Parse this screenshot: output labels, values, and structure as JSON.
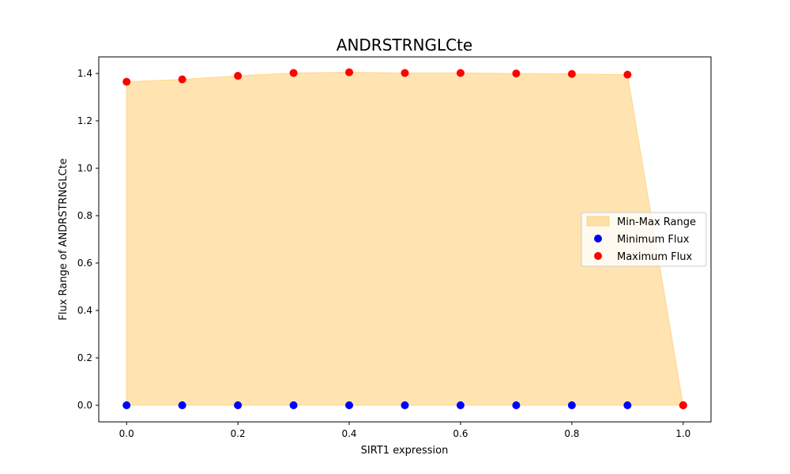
{
  "chart_data": {
    "type": "area",
    "title": "ANDRSTRNGLCte",
    "xlabel": "SIRT1 expression",
    "ylabel": "Flux Range of ANDRSTRNGLCte",
    "xlim": [
      -0.05,
      1.05
    ],
    "ylim": [
      -0.07,
      1.47
    ],
    "xticks": [
      "0.0",
      "0.2",
      "0.4",
      "0.6",
      "0.8",
      "1.0"
    ],
    "yticks": [
      "0.0",
      "0.2",
      "0.4",
      "0.6",
      "0.8",
      "1.0",
      "1.2",
      "1.4"
    ],
    "x": [
      0.0,
      0.1,
      0.2,
      0.3,
      0.4,
      0.5,
      0.6,
      0.7,
      0.8,
      0.9,
      1.0
    ],
    "series": [
      {
        "name": "Minimum Flux",
        "color": "#0000ff",
        "values": [
          0,
          0,
          0,
          0,
          0,
          0,
          0,
          0,
          0,
          0,
          0
        ]
      },
      {
        "name": "Maximum Flux",
        "color": "#ff0000",
        "values": [
          1.365,
          1.375,
          1.39,
          1.402,
          1.405,
          1.402,
          1.402,
          1.4,
          1.398,
          1.395,
          0.0
        ]
      }
    ],
    "fill": {
      "name": "Min-Max Range",
      "color": "#ffa500",
      "opacity": 0.3,
      "edge_color": "#ffa500"
    },
    "legend": {
      "placement": "center-right",
      "entries": [
        "Min-Max Range",
        "Minimum Flux",
        "Maximum Flux"
      ]
    },
    "grid": false
  }
}
